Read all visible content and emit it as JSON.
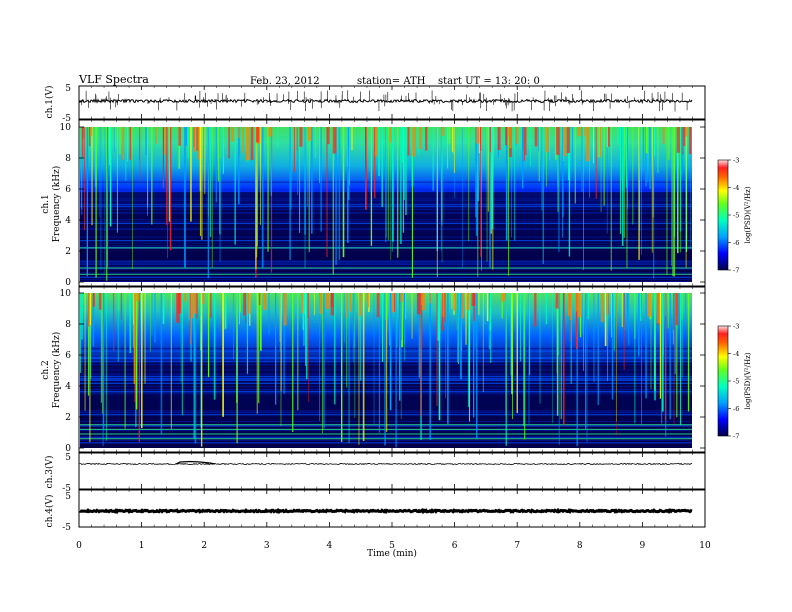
{
  "header": {
    "title": "VLF Spectra",
    "date": "Feb. 23, 2012",
    "station": "station= ATH",
    "start": "start  UT =   13: 20: 0"
  },
  "chart_data": [
    {
      "type": "line",
      "panel": "ch1-waveform",
      "ylabel": "ch.1(V)",
      "ylim": [
        -5,
        5
      ],
      "yticks": [
        "5",
        "-5"
      ],
      "xlim": [
        0,
        10
      ],
      "series": [
        {
          "values_note_free": true
        }
      ]
    },
    {
      "type": "heatmap",
      "panel": "ch1-spectrogram",
      "ylabel": "ch.1\nFrequency (kHz)",
      "ylim": [
        0,
        10
      ],
      "yticks": [
        "0",
        "2",
        "4",
        "6",
        "8",
        "10"
      ],
      "xlim": [
        0,
        9.8
      ],
      "colorbar": {
        "label": "log(PSD)(V²/Hz)",
        "range": [
          -7,
          -3
        ],
        "ticks": [
          "-3",
          "-4",
          "-5",
          "-6",
          "-7"
        ]
      }
    },
    {
      "type": "heatmap",
      "panel": "ch2-spectrogram",
      "ylabel": "ch.2\nFrequency (kHz)",
      "ylim": [
        0,
        10
      ],
      "yticks": [
        "0",
        "2",
        "4",
        "6",
        "8",
        "10"
      ],
      "xlim": [
        0,
        9.8
      ],
      "colorbar": {
        "label": "log(PSD)(V²/Hz)",
        "range": [
          -7,
          -3
        ],
        "ticks": [
          "-3",
          "-4",
          "-5",
          "-6",
          "-7"
        ]
      }
    },
    {
      "type": "line",
      "panel": "ch3-waveform",
      "ylabel": "ch.3(V)",
      "ylim": [
        -5,
        5
      ],
      "yticks": [
        "5",
        "-5"
      ],
      "xlim": [
        0,
        10
      ]
    },
    {
      "type": "line",
      "panel": "ch4-waveform",
      "ylabel": "ch.4(V)",
      "ylim": [
        -5,
        5
      ],
      "yticks": [
        "5",
        "-5"
      ],
      "xlim": [
        0,
        10
      ]
    }
  ],
  "xaxis": {
    "label": "Time (min)",
    "ticks": [
      "0",
      "1",
      "2",
      "3",
      "4",
      "5",
      "6",
      "7",
      "8",
      "9",
      "10"
    ],
    "range": [
      0,
      10
    ]
  },
  "colorbar_labels": {
    "ch1": "log(PSD)(V²/Hz)",
    "ch2": "log(PSD)(V²/Hz)",
    "ticks": [
      "-3",
      "-4",
      "-5",
      "-6",
      "-7"
    ]
  },
  "panel_labels": {
    "ch1_wave": "ch.1(V)",
    "ch1_spec_a": "ch.1",
    "ch1_spec_b": "Frequency (kHz)",
    "ch2_spec_a": "ch.2",
    "ch2_spec_b": "Frequency (kHz)",
    "ch3_wave": "ch.3(V)",
    "ch4_wave": "ch.4(V)"
  },
  "colors": {
    "spectrogram_background": "#00004a",
    "colormap": [
      "#00004a",
      "#0000ff",
      "#00a0ff",
      "#00ffc0",
      "#60ff20",
      "#ffff00",
      "#ff8000",
      "#ff2020",
      "#ffffff"
    ]
  }
}
